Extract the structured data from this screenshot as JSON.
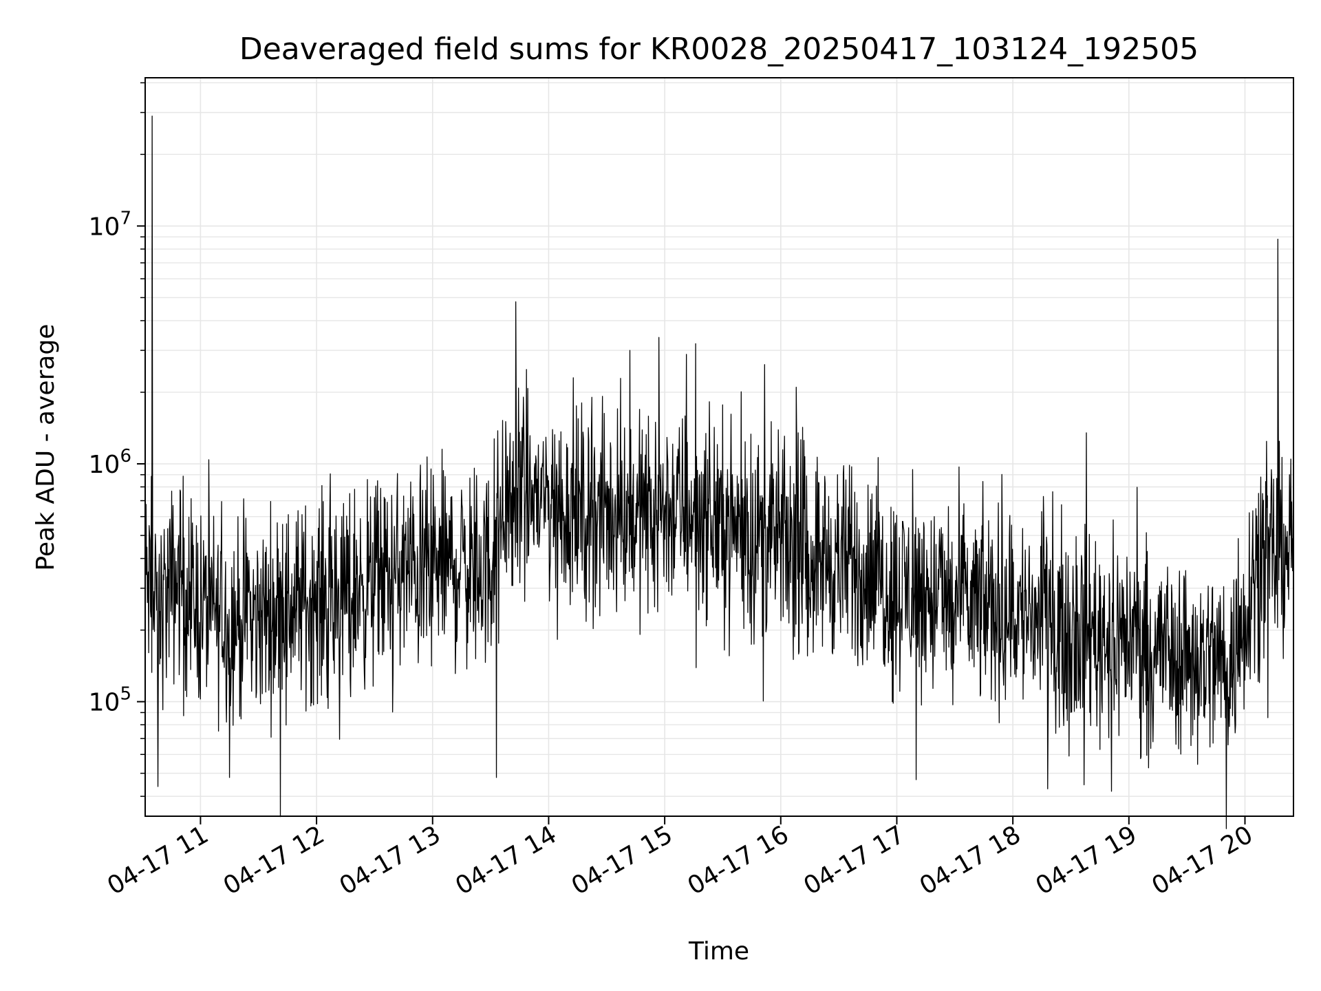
{
  "chart_data": {
    "type": "line",
    "title": "Deaveraged field sums for KR0028_20250417_103124_192505",
    "xlabel": "Time",
    "ylabel": "Peak ADU - average",
    "yscale": "log",
    "grid": true,
    "line_color": "#000000",
    "grid_color": "#e6e6e6",
    "xlim": [
      "2025-04-17 10:31:24",
      "2025-04-17 20:25:05"
    ],
    "ylim": [
      33000,
      42000000
    ],
    "xticks": [
      {
        "time": "2025-04-17 11:00",
        "label": "04-17 11"
      },
      {
        "time": "2025-04-17 12:00",
        "label": "04-17 12"
      },
      {
        "time": "2025-04-17 13:00",
        "label": "04-17 13"
      },
      {
        "time": "2025-04-17 14:00",
        "label": "04-17 14"
      },
      {
        "time": "2025-04-17 15:00",
        "label": "04-17 15"
      },
      {
        "time": "2025-04-17 16:00",
        "label": "04-17 16"
      },
      {
        "time": "2025-04-17 17:00",
        "label": "04-17 17"
      },
      {
        "time": "2025-04-17 18:00",
        "label": "04-17 18"
      },
      {
        "time": "2025-04-17 19:00",
        "label": "04-17 19"
      },
      {
        "time": "2025-04-17 20:00",
        "label": "04-17 20"
      }
    ],
    "yticks": [
      {
        "value": 100000,
        "base": "10",
        "exp": "5"
      },
      {
        "value": 1000000,
        "base": "10",
        "exp": "6"
      },
      {
        "value": 10000000,
        "base": "10",
        "exp": "7"
      }
    ],
    "series": [
      {
        "time": [
          "2025-04-17 10:31",
          "2025-04-17 10:33",
          "2025-04-17 10:35",
          "2025-04-17 10:38",
          "2025-04-17 10:40",
          "2025-04-17 10:45",
          "2025-04-17 10:50",
          "2025-04-17 10:55",
          "2025-04-17 11:00",
          "2025-04-17 11:10",
          "2025-04-17 11:20",
          "2025-04-17 11:30",
          "2025-04-17 11:40",
          "2025-04-17 11:50",
          "2025-04-17 12:00",
          "2025-04-17 12:15",
          "2025-04-17 12:30",
          "2025-04-17 12:45",
          "2025-04-17 13:00",
          "2025-04-17 13:15",
          "2025-04-17 13:30",
          "2025-04-17 13:35",
          "2025-04-17 13:45",
          "2025-04-17 14:00",
          "2025-04-17 14:15",
          "2025-04-17 14:30",
          "2025-04-17 14:45",
          "2025-04-17 15:00",
          "2025-04-17 15:15",
          "2025-04-17 15:30",
          "2025-04-17 15:45",
          "2025-04-17 16:00",
          "2025-04-17 16:15",
          "2025-04-17 16:30",
          "2025-04-17 16:45",
          "2025-04-17 17:00",
          "2025-04-17 17:15",
          "2025-04-17 17:30",
          "2025-04-17 17:45",
          "2025-04-17 18:00",
          "2025-04-17 18:15",
          "2025-04-17 18:30",
          "2025-04-17 18:45",
          "2025-04-17 19:00",
          "2025-04-17 19:15",
          "2025-04-17 19:30",
          "2025-04-17 19:45",
          "2025-04-17 19:55",
          "2025-04-17 20:05",
          "2025-04-17 20:15",
          "2025-04-17 20:25"
        ],
        "baseline": [
          350000,
          300000,
          250000,
          240000,
          260000,
          300000,
          350000,
          280000,
          250000,
          230000,
          220000,
          230000,
          240000,
          260000,
          270000,
          290000,
          320000,
          350000,
          370000,
          380000,
          360000,
          650000,
          750000,
          700000,
          620000,
          600000,
          620000,
          650000,
          630000,
          580000,
          520000,
          470000,
          430000,
          380000,
          340000,
          300000,
          280000,
          260000,
          250000,
          240000,
          220000,
          210000,
          200000,
          190000,
          170000,
          160000,
          150000,
          150000,
          380000,
          420000,
          480000
        ],
        "spread": 2.4,
        "spikes": [
          {
            "time": "2025-04-17 10:35",
            "value": 29000000
          },
          {
            "time": "2025-04-17 10:38",
            "value": 44000
          },
          {
            "time": "2025-04-17 11:15",
            "value": 48000
          },
          {
            "time": "2025-04-17 13:33",
            "value": 48000
          },
          {
            "time": "2025-04-17 13:43",
            "value": 4800000
          },
          {
            "time": "2025-04-17 14:42",
            "value": 3000000
          },
          {
            "time": "2025-04-17 14:57",
            "value": 3400000
          },
          {
            "time": "2025-04-17 15:16",
            "value": 3200000
          },
          {
            "time": "2025-04-17 16:08",
            "value": 2100000
          },
          {
            "time": "2025-04-17 17:10",
            "value": 47000
          },
          {
            "time": "2025-04-17 18:18",
            "value": 43000
          },
          {
            "time": "2025-04-17 18:38",
            "value": 1350000
          },
          {
            "time": "2025-04-17 18:51",
            "value": 42000
          },
          {
            "time": "2025-04-17 20:17",
            "value": 8800000
          }
        ]
      }
    ]
  }
}
